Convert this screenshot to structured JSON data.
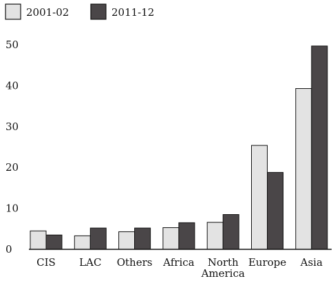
{
  "chart_data": {
    "type": "bar",
    "categories": [
      "CIS",
      "LAC",
      "Others",
      "Africa",
      "North America",
      "Europe",
      "Asia"
    ],
    "category_lines": [
      [
        "CIS"
      ],
      [
        "LAC"
      ],
      [
        "Others"
      ],
      [
        "Africa"
      ],
      [
        "North",
        "America"
      ],
      [
        "Europe"
      ],
      [
        "Asia"
      ]
    ],
    "series": [
      {
        "name": "2001-02",
        "color": "#e3e3e3",
        "values": [
          4.5,
          3.3,
          4.3,
          5.3,
          6.6,
          25.4,
          39.3
        ]
      },
      {
        "name": "2011-12",
        "color": "#4a4648",
        "values": [
          3.5,
          5.2,
          5.2,
          6.5,
          8.5,
          18.8,
          49.7
        ]
      }
    ],
    "title": "",
    "xlabel": "",
    "ylabel": "",
    "ylim": [
      0,
      50
    ],
    "yticks": [
      "0",
      "10",
      "20",
      "30",
      "40",
      "50"
    ],
    "ytick_values": [
      0,
      10,
      20,
      30,
      40,
      50
    ],
    "grid": false,
    "legend_position": "top-left"
  }
}
